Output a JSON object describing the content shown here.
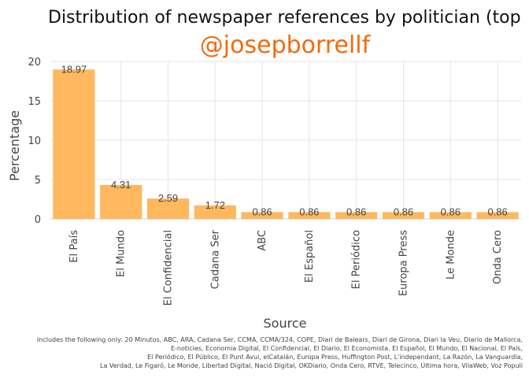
{
  "chart_data": {
    "type": "bar",
    "title": "Distribution of newspaper references by politician (top",
    "subtitle": "@josepborrellf",
    "xlabel": "Source",
    "ylabel": "Percentage",
    "categories": [
      "El País",
      "El Mundo",
      "El Confidencial",
      "Cadana Ser",
      "ABC",
      "El Español",
      "El Periódico",
      "Europa Press",
      "Le Monde",
      "Onda Cero"
    ],
    "values": [
      18.97,
      4.31,
      2.59,
      1.72,
      0.86,
      0.86,
      0.86,
      0.86,
      0.86,
      0.86
    ],
    "data_labels": [
      "18.97",
      "4.31",
      "2.59",
      "1.72",
      "0.86",
      "0.86",
      "0.86",
      "0.86",
      "0.86",
      "0.86"
    ],
    "ylim": [
      0,
      20
    ],
    "yticks": [
      0,
      5,
      10,
      15,
      20
    ],
    "ytick_labels": [
      "0",
      "5",
      "10",
      "15",
      "20"
    ],
    "grid": true,
    "legend": "none",
    "colors": {
      "bar": "#ffb85e",
      "subtitle": "#f26b0c"
    },
    "caption": [
      "Includes the following only: 20 Minutos, ABC, ARA, Cadana Ser, CCMA, CCMA/324, COPE, Diari de Balears, Diari de Girona, Diari la Veu, Diario de Mallorca,",
      "E-noticies, Economia Digital, El Confidencial, El Diario, El Economista, El Español, El Mundo, El Nacional, El País,",
      "El Periódico, El Público, El Punt Avui, elCatalán, Europa Press, Huffington Post, L'independant, La Razón, La Vanguardia,",
      "La Verdad, Le Figaró, Le Monde, Libertad Digital, Nació Digital, OKDiario, Onda Cero, RTVE, Telecinco, Última hora, VilaWeb, Voz Populi"
    ]
  }
}
